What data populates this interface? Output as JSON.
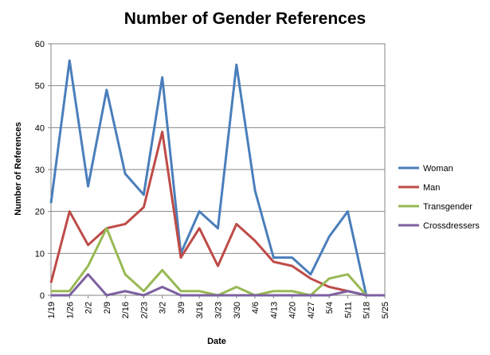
{
  "chart_data": {
    "type": "line",
    "title": "Number of Gender References",
    "xlabel": "Date",
    "ylabel": "Number of References",
    "ylim": [
      0,
      60
    ],
    "yticks": [
      0,
      10,
      20,
      30,
      40,
      50,
      60
    ],
    "grid": true,
    "legend_position": "right",
    "x": [
      "1/19",
      "1/26",
      "2/2",
      "2/9",
      "2/16",
      "2/23",
      "3/2",
      "3/9",
      "3/16",
      "3/23",
      "3/30",
      "4/6",
      "4/13",
      "4/20",
      "4/27",
      "5/4",
      "5/11",
      "5/18",
      "5/25"
    ],
    "series": [
      {
        "name": "Woman",
        "color": "#4a7ebb",
        "values": [
          22,
          56,
          26,
          49,
          29,
          24,
          52,
          10,
          20,
          16,
          55,
          25,
          9,
          9,
          5,
          14,
          20,
          0,
          0
        ]
      },
      {
        "name": "Man",
        "color": "#be4b48",
        "values": [
          3,
          20,
          12,
          16,
          17,
          21,
          39,
          9,
          16,
          7,
          17,
          13,
          8,
          7,
          4,
          2,
          1,
          0,
          0
        ]
      },
      {
        "name": "Transgender",
        "color": "#98b954",
        "values": [
          1,
          1,
          7,
          16,
          5,
          1,
          6,
          1,
          1,
          0,
          2,
          0,
          1,
          1,
          0,
          4,
          5,
          0,
          0
        ]
      },
      {
        "name": "Crossdressers",
        "color": "#7d60a0",
        "values": [
          0,
          0,
          5,
          0,
          1,
          0,
          2,
          0,
          0,
          0,
          0,
          0,
          0,
          0,
          0,
          0,
          1,
          0,
          0
        ]
      }
    ]
  }
}
